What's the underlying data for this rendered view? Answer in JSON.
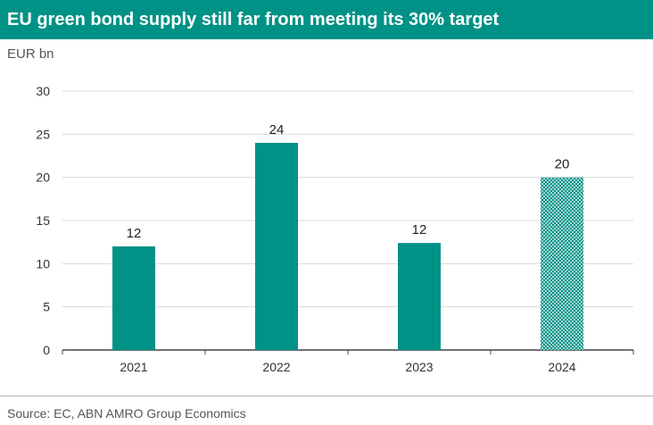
{
  "chart_data": {
    "type": "bar",
    "title": "EU green bond supply still far from meeting its 30% target",
    "ylabel": "EUR bn",
    "xlabel": "",
    "categories": [
      "2021",
      "2022",
      "2023",
      "2024"
    ],
    "values": [
      12,
      24,
      12.4,
      20
    ],
    "value_labels": [
      "12",
      "24",
      "12",
      "20"
    ],
    "hatched": [
      false,
      false,
      false,
      true
    ],
    "ylim": [
      0,
      30
    ],
    "yticks": [
      0,
      5,
      10,
      15,
      20,
      25,
      30
    ],
    "ytick_labels": [
      "0",
      "5",
      "10",
      "15",
      "20",
      "25",
      "30"
    ],
    "grid": true,
    "legend": "none",
    "source": "Source: EC, ABN AMRO Group Economics"
  },
  "colors": {
    "accent": "#009286",
    "grid": "#d9d9d9",
    "axis": "#444444"
  }
}
